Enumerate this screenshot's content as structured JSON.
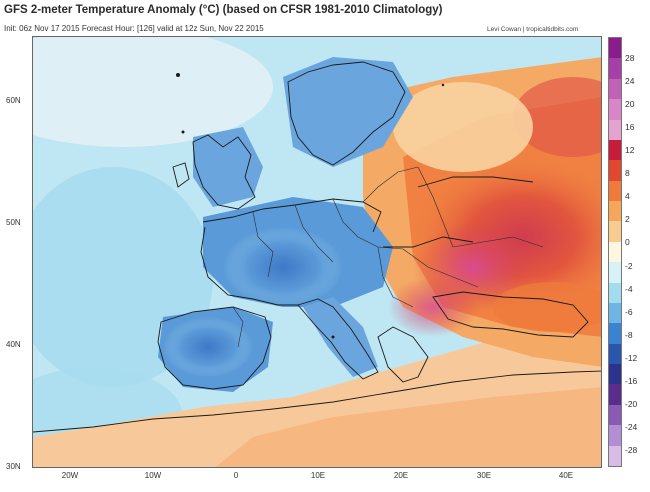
{
  "header": {
    "title": "GFS 2-meter Temperature Anomaly (°C) (based on CFSR 1981-2010 Climatology)",
    "subtitle": "Init: 06z Nov 17 2015   Forecast Hour: [126]   valid at 12z Sun, Nov 22 2015",
    "credit": "Levi Cowan | tropicaltidbits.com"
  },
  "map": {
    "region": "Europe",
    "lat_labels": [
      "60N",
      "50N",
      "40N",
      "30N"
    ],
    "lon_labels": [
      "20W",
      "10W",
      "0",
      "10E",
      "20E",
      "30E",
      "40E"
    ],
    "colors": {
      "warm_strong": "#d03c50",
      "warm_medium": "#ef7a3c",
      "warm_light": "#f6c592",
      "cold_medium": "#5b9ad8",
      "cold_light": "#a4d6ee",
      "cold_strong": "#2c5fb8",
      "extreme_warm": "#e0508a"
    }
  },
  "colorbar": {
    "labels": [
      "28",
      "24",
      "20",
      "16",
      "12",
      "8",
      "4",
      "2",
      "0",
      "-2",
      "-4",
      "-6",
      "-8",
      "-12",
      "-16",
      "-20",
      "-24",
      "-28"
    ],
    "colors": [
      "#8a1c8c",
      "#a83ea8",
      "#c062b6",
      "#d886c8",
      "#e4a3cf",
      "#c81c3c",
      "#e04830",
      "#ef7a3c",
      "#f5a65a",
      "#f8cc90",
      "#fff6e2",
      "#d6f2f6",
      "#a4dcef",
      "#6eb4e4",
      "#3c82d2",
      "#2a56ae",
      "#2a348c",
      "#5a2c8c",
      "#8a5ab4",
      "#b48ed4",
      "#d8bce6"
    ]
  }
}
